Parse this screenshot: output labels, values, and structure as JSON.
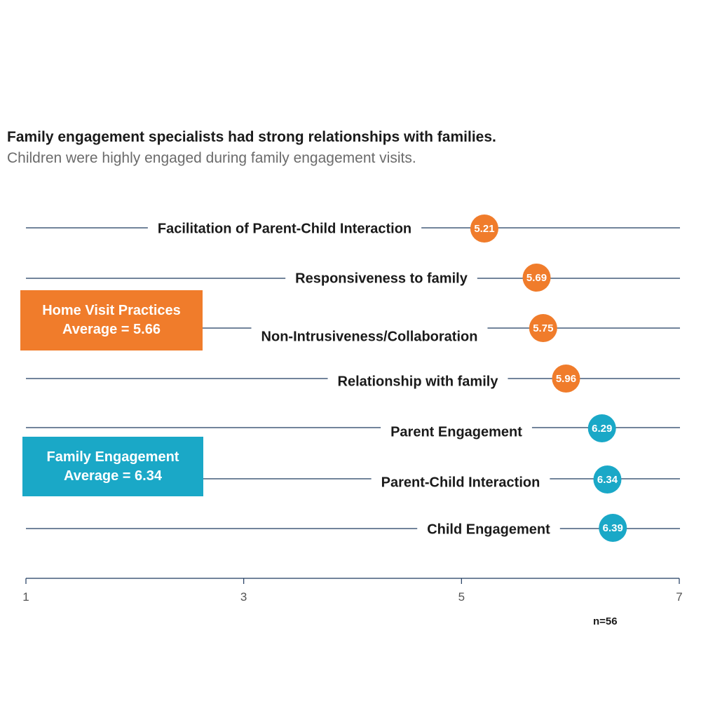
{
  "title": "Family engagement specialists had strong relationships with families.",
  "subtitle": "Children were highly engaged during family engagement visits.",
  "note": "n=56",
  "colors": {
    "home_visit": "#f07c2b",
    "family_engagement": "#1aa8c7",
    "axis": "#1f3a5f",
    "text": "#1a1a1a"
  },
  "groups": [
    {
      "id": "hv",
      "line1": "Home Visit Practices",
      "line2": "Average = 5.66",
      "color": "#f07c2b"
    },
    {
      "id": "fe",
      "line1": "Family Engagement",
      "line2": "Average = 6.34",
      "color": "#1aa8c7"
    }
  ],
  "chart_data": {
    "type": "scatter",
    "title": "Family engagement specialists had strong relationships with families.",
    "subtitle": "Children were highly engaged during family engagement visits.",
    "xlabel": "",
    "ylabel": "",
    "xlim": [
      1,
      7
    ],
    "xticks": [
      1,
      3,
      5,
      7
    ],
    "grid": false,
    "series": [
      {
        "name": "Home Visit Practices",
        "color": "#f07c2b",
        "points": [
          {
            "label": "Facilitation of Parent-Child Interaction",
            "value": 5.21,
            "value_label": "5.21"
          },
          {
            "label": "Responsiveness to family",
            "value": 5.69,
            "value_label": "5.69"
          },
          {
            "label": "Non-Intrusiveness/Collaboration",
            "value": 5.75,
            "value_label": "5.75"
          },
          {
            "label": "Relationship with family",
            "value": 5.96,
            "value_label": "5.96"
          }
        ]
      },
      {
        "name": "Family Engagement",
        "color": "#1aa8c7",
        "points": [
          {
            "label": "Parent Engagement",
            "value": 6.29,
            "value_label": "6.29"
          },
          {
            "label": "Parent-Child Interaction",
            "value": 6.34,
            "value_label": "6.34"
          },
          {
            "label": "Child Engagement",
            "value": 6.39,
            "value_label": "6.39"
          }
        ]
      }
    ],
    "averages": [
      {
        "group": "Home Visit Practices",
        "value": 5.66
      },
      {
        "group": "Family Engagement",
        "value": 6.34
      }
    ]
  }
}
